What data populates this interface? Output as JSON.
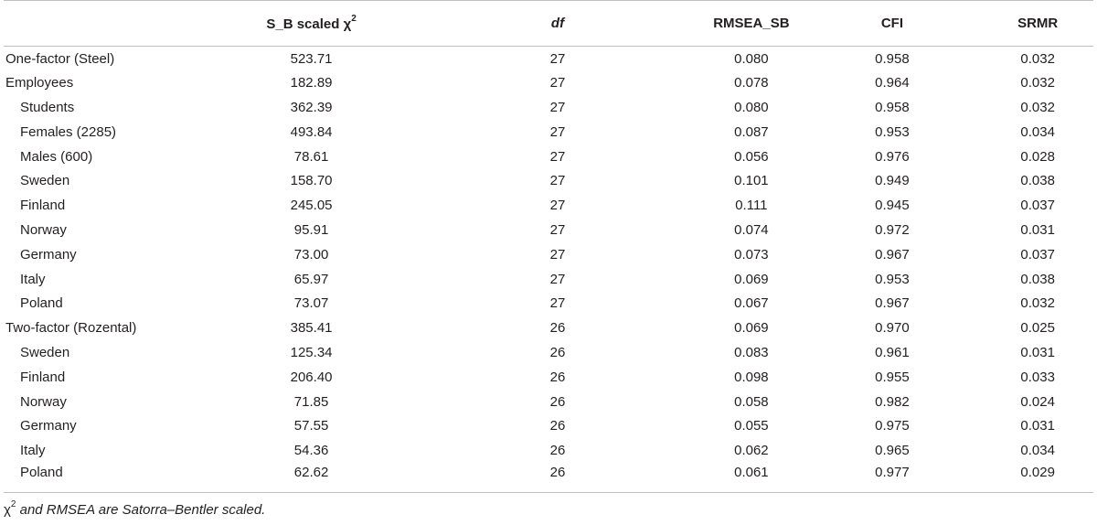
{
  "headers": {
    "label": "",
    "chi_main": "S_B scaled χ",
    "chi_sup": "2",
    "df": "df",
    "rmsea": "RMSEA_SB",
    "cfi": "CFI",
    "srmr": "SRMR"
  },
  "rows": [
    {
      "label": "One-factor (Steel)",
      "chi": "523.71",
      "df": "27",
      "rmsea": "0.080",
      "cfi": "0.958",
      "srmr": "0.032"
    },
    {
      "label": "Employees",
      "chi": "182.89",
      "df": "27",
      "rmsea": "0.078",
      "cfi": "0.964",
      "srmr": "0.032"
    },
    {
      "label": "Students",
      "chi": "362.39",
      "df": "27",
      "rmsea": "0.080",
      "cfi": "0.958",
      "srmr": "0.032"
    },
    {
      "label": "Females (2285)",
      "chi": "493.84",
      "df": "27",
      "rmsea": "0.087",
      "cfi": "0.953",
      "srmr": "0.034"
    },
    {
      "label": "Males (600)",
      "chi": "78.61",
      "df": "27",
      "rmsea": "0.056",
      "cfi": "0.976",
      "srmr": "0.028"
    },
    {
      "label": "Sweden",
      "chi": "158.70",
      "df": "27",
      "rmsea": "0.101",
      "cfi": "0.949",
      "srmr": "0.038"
    },
    {
      "label": "Finland",
      "chi": "245.05",
      "df": "27",
      "rmsea": "0.111",
      "cfi": "0.945",
      "srmr": "0.037"
    },
    {
      "label": "Norway",
      "chi": "95.91",
      "df": "27",
      "rmsea": "0.074",
      "cfi": "0.972",
      "srmr": "0.031"
    },
    {
      "label": "Germany",
      "chi": "73.00",
      "df": "27",
      "rmsea": "0.073",
      "cfi": "0.967",
      "srmr": "0.037"
    },
    {
      "label": "Italy",
      "chi": "65.97",
      "df": "27",
      "rmsea": "0.069",
      "cfi": "0.953",
      "srmr": "0.038"
    },
    {
      "label": "Poland",
      "chi": "73.07",
      "df": "27",
      "rmsea": "0.067",
      "cfi": "0.967",
      "srmr": "0.032"
    },
    {
      "label": "Two-factor (Rozental)",
      "chi": "385.41",
      "df": "26",
      "rmsea": "0.069",
      "cfi": "0.970",
      "srmr": "0.025"
    },
    {
      "label": "Sweden",
      "chi": "125.34",
      "df": "26",
      "rmsea": "0.083",
      "cfi": "0.961",
      "srmr": "0.031"
    },
    {
      "label": "Finland",
      "chi": "206.40",
      "df": "26",
      "rmsea": "0.098",
      "cfi": "0.955",
      "srmr": "0.033"
    },
    {
      "label": "Norway",
      "chi": "71.85",
      "df": "26",
      "rmsea": "0.058",
      "cfi": "0.982",
      "srmr": "0.024"
    },
    {
      "label": "Germany",
      "chi": "57.55",
      "df": "26",
      "rmsea": "0.055",
      "cfi": "0.975",
      "srmr": "0.031"
    },
    {
      "label": "Italy",
      "chi": "54.36",
      "df": "26",
      "rmsea": "0.062",
      "cfi": "0.965",
      "srmr": "0.034"
    },
    {
      "label": "Poland",
      "chi": "62.62",
      "df": "26",
      "rmsea": "0.061",
      "cfi": "0.977",
      "srmr": "0.029"
    }
  ],
  "footnote": {
    "chi": "χ",
    "sup": "2",
    "text": " and RMSEA are Satorra–Bentler scaled."
  }
}
